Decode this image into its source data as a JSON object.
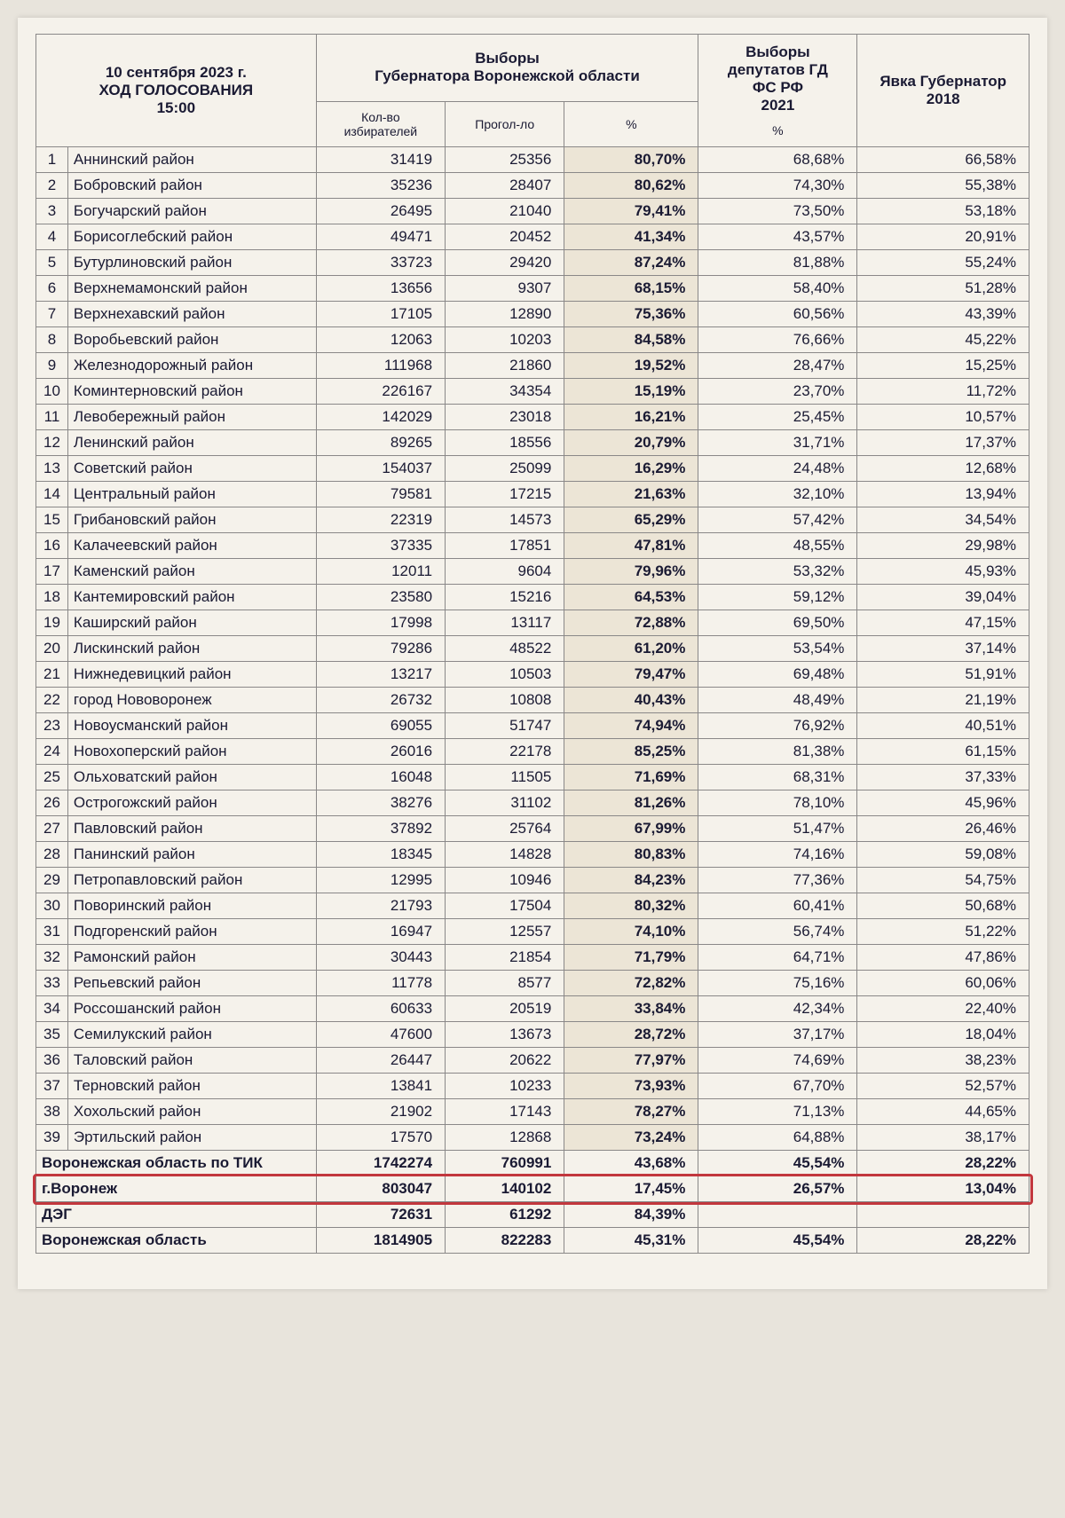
{
  "header": {
    "left_title_l1": "10 сентября 2023 г.",
    "left_title_l2": "ХОД ГОЛОСОВАНИЯ",
    "left_title_l3": "15:00",
    "group1_l1": "Выборы",
    "group1_l2": "Губернатора Воронежской области",
    "group2_l1": "Выборы",
    "group2_l2": "депутатов ГД",
    "group2_l3": "ФС РФ",
    "group2_l4": "2021",
    "group3_l1": "Явка Губернатор",
    "group3_l2": "2018",
    "sub_voters": "Кол-во избирателей",
    "sub_voted": "Прогол-ло",
    "sub_pct": "%",
    "sub_pct2": "%"
  },
  "rows": [
    {
      "n": "1",
      "name": "Аннинский район",
      "voters": "31419",
      "voted": "25356",
      "pct": "80,70%",
      "gd": "68,68%",
      "y18": "66,58%"
    },
    {
      "n": "2",
      "name": "Бобровский район",
      "voters": "35236",
      "voted": "28407",
      "pct": "80,62%",
      "gd": "74,30%",
      "y18": "55,38%"
    },
    {
      "n": "3",
      "name": "Богучарский район",
      "voters": "26495",
      "voted": "21040",
      "pct": "79,41%",
      "gd": "73,50%",
      "y18": "53,18%"
    },
    {
      "n": "4",
      "name": "Борисоглебский район",
      "voters": "49471",
      "voted": "20452",
      "pct": "41,34%",
      "gd": "43,57%",
      "y18": "20,91%"
    },
    {
      "n": "5",
      "name": "Бутурлиновский район",
      "voters": "33723",
      "voted": "29420",
      "pct": "87,24%",
      "gd": "81,88%",
      "y18": "55,24%"
    },
    {
      "n": "6",
      "name": "Верхнемамонский район",
      "voters": "13656",
      "voted": "9307",
      "pct": "68,15%",
      "gd": "58,40%",
      "y18": "51,28%"
    },
    {
      "n": "7",
      "name": "Верхнехавский район",
      "voters": "17105",
      "voted": "12890",
      "pct": "75,36%",
      "gd": "60,56%",
      "y18": "43,39%"
    },
    {
      "n": "8",
      "name": "Воробьевский район",
      "voters": "12063",
      "voted": "10203",
      "pct": "84,58%",
      "gd": "76,66%",
      "y18": "45,22%"
    },
    {
      "n": "9",
      "name": "Железнодорожный район",
      "voters": "111968",
      "voted": "21860",
      "pct": "19,52%",
      "gd": "28,47%",
      "y18": "15,25%"
    },
    {
      "n": "10",
      "name": "Коминтерновский район",
      "voters": "226167",
      "voted": "34354",
      "pct": "15,19%",
      "gd": "23,70%",
      "y18": "11,72%"
    },
    {
      "n": "11",
      "name": "Левобережный район",
      "voters": "142029",
      "voted": "23018",
      "pct": "16,21%",
      "gd": "25,45%",
      "y18": "10,57%"
    },
    {
      "n": "12",
      "name": "Ленинский район",
      "voters": "89265",
      "voted": "18556",
      "pct": "20,79%",
      "gd": "31,71%",
      "y18": "17,37%"
    },
    {
      "n": "13",
      "name": "Советский район",
      "voters": "154037",
      "voted": "25099",
      "pct": "16,29%",
      "gd": "24,48%",
      "y18": "12,68%"
    },
    {
      "n": "14",
      "name": "Центральный район",
      "voters": "79581",
      "voted": "17215",
      "pct": "21,63%",
      "gd": "32,10%",
      "y18": "13,94%"
    },
    {
      "n": "15",
      "name": "Грибановский район",
      "voters": "22319",
      "voted": "14573",
      "pct": "65,29%",
      "gd": "57,42%",
      "y18": "34,54%"
    },
    {
      "n": "16",
      "name": "Калачеевский район",
      "voters": "37335",
      "voted": "17851",
      "pct": "47,81%",
      "gd": "48,55%",
      "y18": "29,98%"
    },
    {
      "n": "17",
      "name": "Каменский район",
      "voters": "12011",
      "voted": "9604",
      "pct": "79,96%",
      "gd": "53,32%",
      "y18": "45,93%"
    },
    {
      "n": "18",
      "name": "Кантемировский район",
      "voters": "23580",
      "voted": "15216",
      "pct": "64,53%",
      "gd": "59,12%",
      "y18": "39,04%"
    },
    {
      "n": "19",
      "name": "Каширский район",
      "voters": "17998",
      "voted": "13117",
      "pct": "72,88%",
      "gd": "69,50%",
      "y18": "47,15%"
    },
    {
      "n": "20",
      "name": "Лискинский район",
      "voters": "79286",
      "voted": "48522",
      "pct": "61,20%",
      "gd": "53,54%",
      "y18": "37,14%"
    },
    {
      "n": "21",
      "name": "Нижнедевицкий район",
      "voters": "13217",
      "voted": "10503",
      "pct": "79,47%",
      "gd": "69,48%",
      "y18": "51,91%"
    },
    {
      "n": "22",
      "name": "город Нововоронеж",
      "voters": "26732",
      "voted": "10808",
      "pct": "40,43%",
      "gd": "48,49%",
      "y18": "21,19%"
    },
    {
      "n": "23",
      "name": "Новоусманский район",
      "voters": "69055",
      "voted": "51747",
      "pct": "74,94%",
      "gd": "76,92%",
      "y18": "40,51%"
    },
    {
      "n": "24",
      "name": "Новохоперский район",
      "voters": "26016",
      "voted": "22178",
      "pct": "85,25%",
      "gd": "81,38%",
      "y18": "61,15%"
    },
    {
      "n": "25",
      "name": "Ольховатский район",
      "voters": "16048",
      "voted": "11505",
      "pct": "71,69%",
      "gd": "68,31%",
      "y18": "37,33%"
    },
    {
      "n": "26",
      "name": "Острогожский район",
      "voters": "38276",
      "voted": "31102",
      "pct": "81,26%",
      "gd": "78,10%",
      "y18": "45,96%"
    },
    {
      "n": "27",
      "name": "Павловский район",
      "voters": "37892",
      "voted": "25764",
      "pct": "67,99%",
      "gd": "51,47%",
      "y18": "26,46%"
    },
    {
      "n": "28",
      "name": "Панинский район",
      "voters": "18345",
      "voted": "14828",
      "pct": "80,83%",
      "gd": "74,16%",
      "y18": "59,08%"
    },
    {
      "n": "29",
      "name": "Петропавловский район",
      "voters": "12995",
      "voted": "10946",
      "pct": "84,23%",
      "gd": "77,36%",
      "y18": "54,75%"
    },
    {
      "n": "30",
      "name": "Поворинский район",
      "voters": "21793",
      "voted": "17504",
      "pct": "80,32%",
      "gd": "60,41%",
      "y18": "50,68%"
    },
    {
      "n": "31",
      "name": "Подгоренский район",
      "voters": "16947",
      "voted": "12557",
      "pct": "74,10%",
      "gd": "56,74%",
      "y18": "51,22%"
    },
    {
      "n": "32",
      "name": "Рамонский район",
      "voters": "30443",
      "voted": "21854",
      "pct": "71,79%",
      "gd": "64,71%",
      "y18": "47,86%"
    },
    {
      "n": "33",
      "name": "Репьевский район",
      "voters": "11778",
      "voted": "8577",
      "pct": "72,82%",
      "gd": "75,16%",
      "y18": "60,06%"
    },
    {
      "n": "34",
      "name": "Россошанский район",
      "voters": "60633",
      "voted": "20519",
      "pct": "33,84%",
      "gd": "42,34%",
      "y18": "22,40%"
    },
    {
      "n": "35",
      "name": "Семилукский район",
      "voters": "47600",
      "voted": "13673",
      "pct": "28,72%",
      "gd": "37,17%",
      "y18": "18,04%"
    },
    {
      "n": "36",
      "name": "Таловский район",
      "voters": "26447",
      "voted": "20622",
      "pct": "77,97%",
      "gd": "74,69%",
      "y18": "38,23%"
    },
    {
      "n": "37",
      "name": "Терновский район",
      "voters": "13841",
      "voted": "10233",
      "pct": "73,93%",
      "gd": "67,70%",
      "y18": "52,57%"
    },
    {
      "n": "38",
      "name": "Хохольский район",
      "voters": "21902",
      "voted": "17143",
      "pct": "78,27%",
      "gd": "71,13%",
      "y18": "44,65%"
    },
    {
      "n": "39",
      "name": "Эртильский район",
      "voters": "17570",
      "voted": "12868",
      "pct": "73,24%",
      "gd": "64,88%",
      "y18": "38,17%"
    }
  ],
  "summary": [
    {
      "name": "Воронежская область по ТИК",
      "voters": "1742274",
      "voted": "760991",
      "pct": "43,68%",
      "gd": "45,54%",
      "y18": "28,22%"
    },
    {
      "name": "г.Воронеж",
      "voters": "803047",
      "voted": "140102",
      "pct": "17,45%",
      "gd": "26,57%",
      "y18": "13,04%"
    },
    {
      "name": "ДЭГ",
      "voters": "72631",
      "voted": "61292",
      "pct": "84,39%",
      "gd": "",
      "y18": ""
    },
    {
      "name": "Воронежская область",
      "voters": "1814905",
      "voted": "822283",
      "pct": "45,31%",
      "gd": "45,54%",
      "y18": "28,22%"
    }
  ],
  "style": {
    "highlight_row_index": 1,
    "border_color": "#8a8888",
    "bg": "#f5f2eb",
    "text": "#1a1a33",
    "highlight_border": "#c2373d"
  }
}
